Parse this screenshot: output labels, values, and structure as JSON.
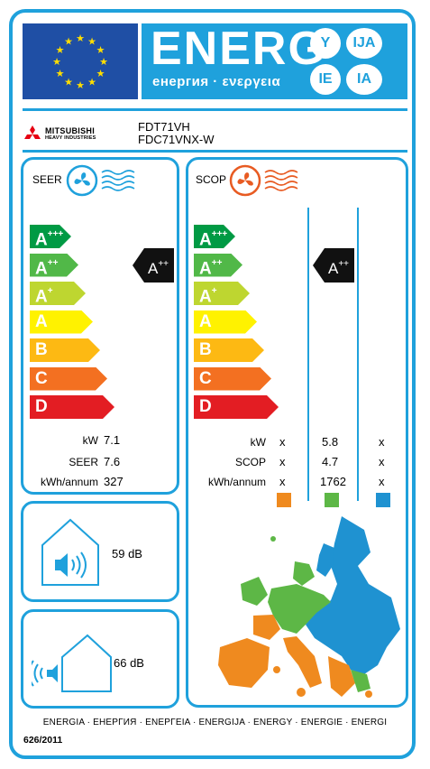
{
  "header": {
    "energy_title": "ENERG",
    "energy_subtitle": "енергия · ενεργεια",
    "language_badges": [
      "Y",
      "IJA",
      "IE",
      "IA"
    ],
    "colors": {
      "accent": "#1fa1dc",
      "eu_flag_blue": "#1f4fa5",
      "eu_star": "#ffde00"
    }
  },
  "supplier": {
    "brand": "MITSUBISHI",
    "brand_sub": "HEAVY INDUSTRIES",
    "indoor_model": "FDT71VH",
    "outdoor_model": "FDC71VNX-W"
  },
  "cooling": {
    "title": "SEER",
    "icon": "fan-cooling-icon",
    "classes": [
      "A+++",
      "A++",
      "A+",
      "A",
      "B",
      "C",
      "D"
    ],
    "rated_class": "A++",
    "rows": [
      {
        "label": "kW",
        "value": "7.1"
      },
      {
        "label": "SEER",
        "value": "7.6"
      },
      {
        "label": "kWh/annum",
        "value": "327"
      }
    ]
  },
  "heating": {
    "title": "SCOP",
    "icon": "fan-heating-icon",
    "classes": [
      "A+++",
      "A++",
      "A+",
      "A",
      "B",
      "C",
      "D"
    ],
    "rated_class": "A++",
    "rows": [
      {
        "label": "kW",
        "warmer": "x",
        "average": "5.8",
        "colder": "x"
      },
      {
        "label": "SCOP",
        "warmer": "x",
        "average": "4.7",
        "colder": "x"
      },
      {
        "label": "kWh/annum",
        "warmer": "x",
        "average": "1762",
        "colder": "x"
      }
    ],
    "zone_colors": {
      "warmer": "#ef8a1f",
      "average": "#5db746",
      "colder": "#1f92d1"
    }
  },
  "noise": {
    "indoor_db": "59 dB",
    "outdoor_db": "66 dB"
  },
  "footer": {
    "languages": "ENERGIA · ЕНЕРГИЯ · ΕΝΕΡΓΕΙΑ · ENERGIJA · ENERGY · ENERGIE · ENERGI",
    "regulation": "626/2011"
  },
  "class_colors": [
    "#009a44",
    "#51b848",
    "#bed630",
    "#fff200",
    "#fdb913",
    "#f37021",
    "#e31d23"
  ]
}
